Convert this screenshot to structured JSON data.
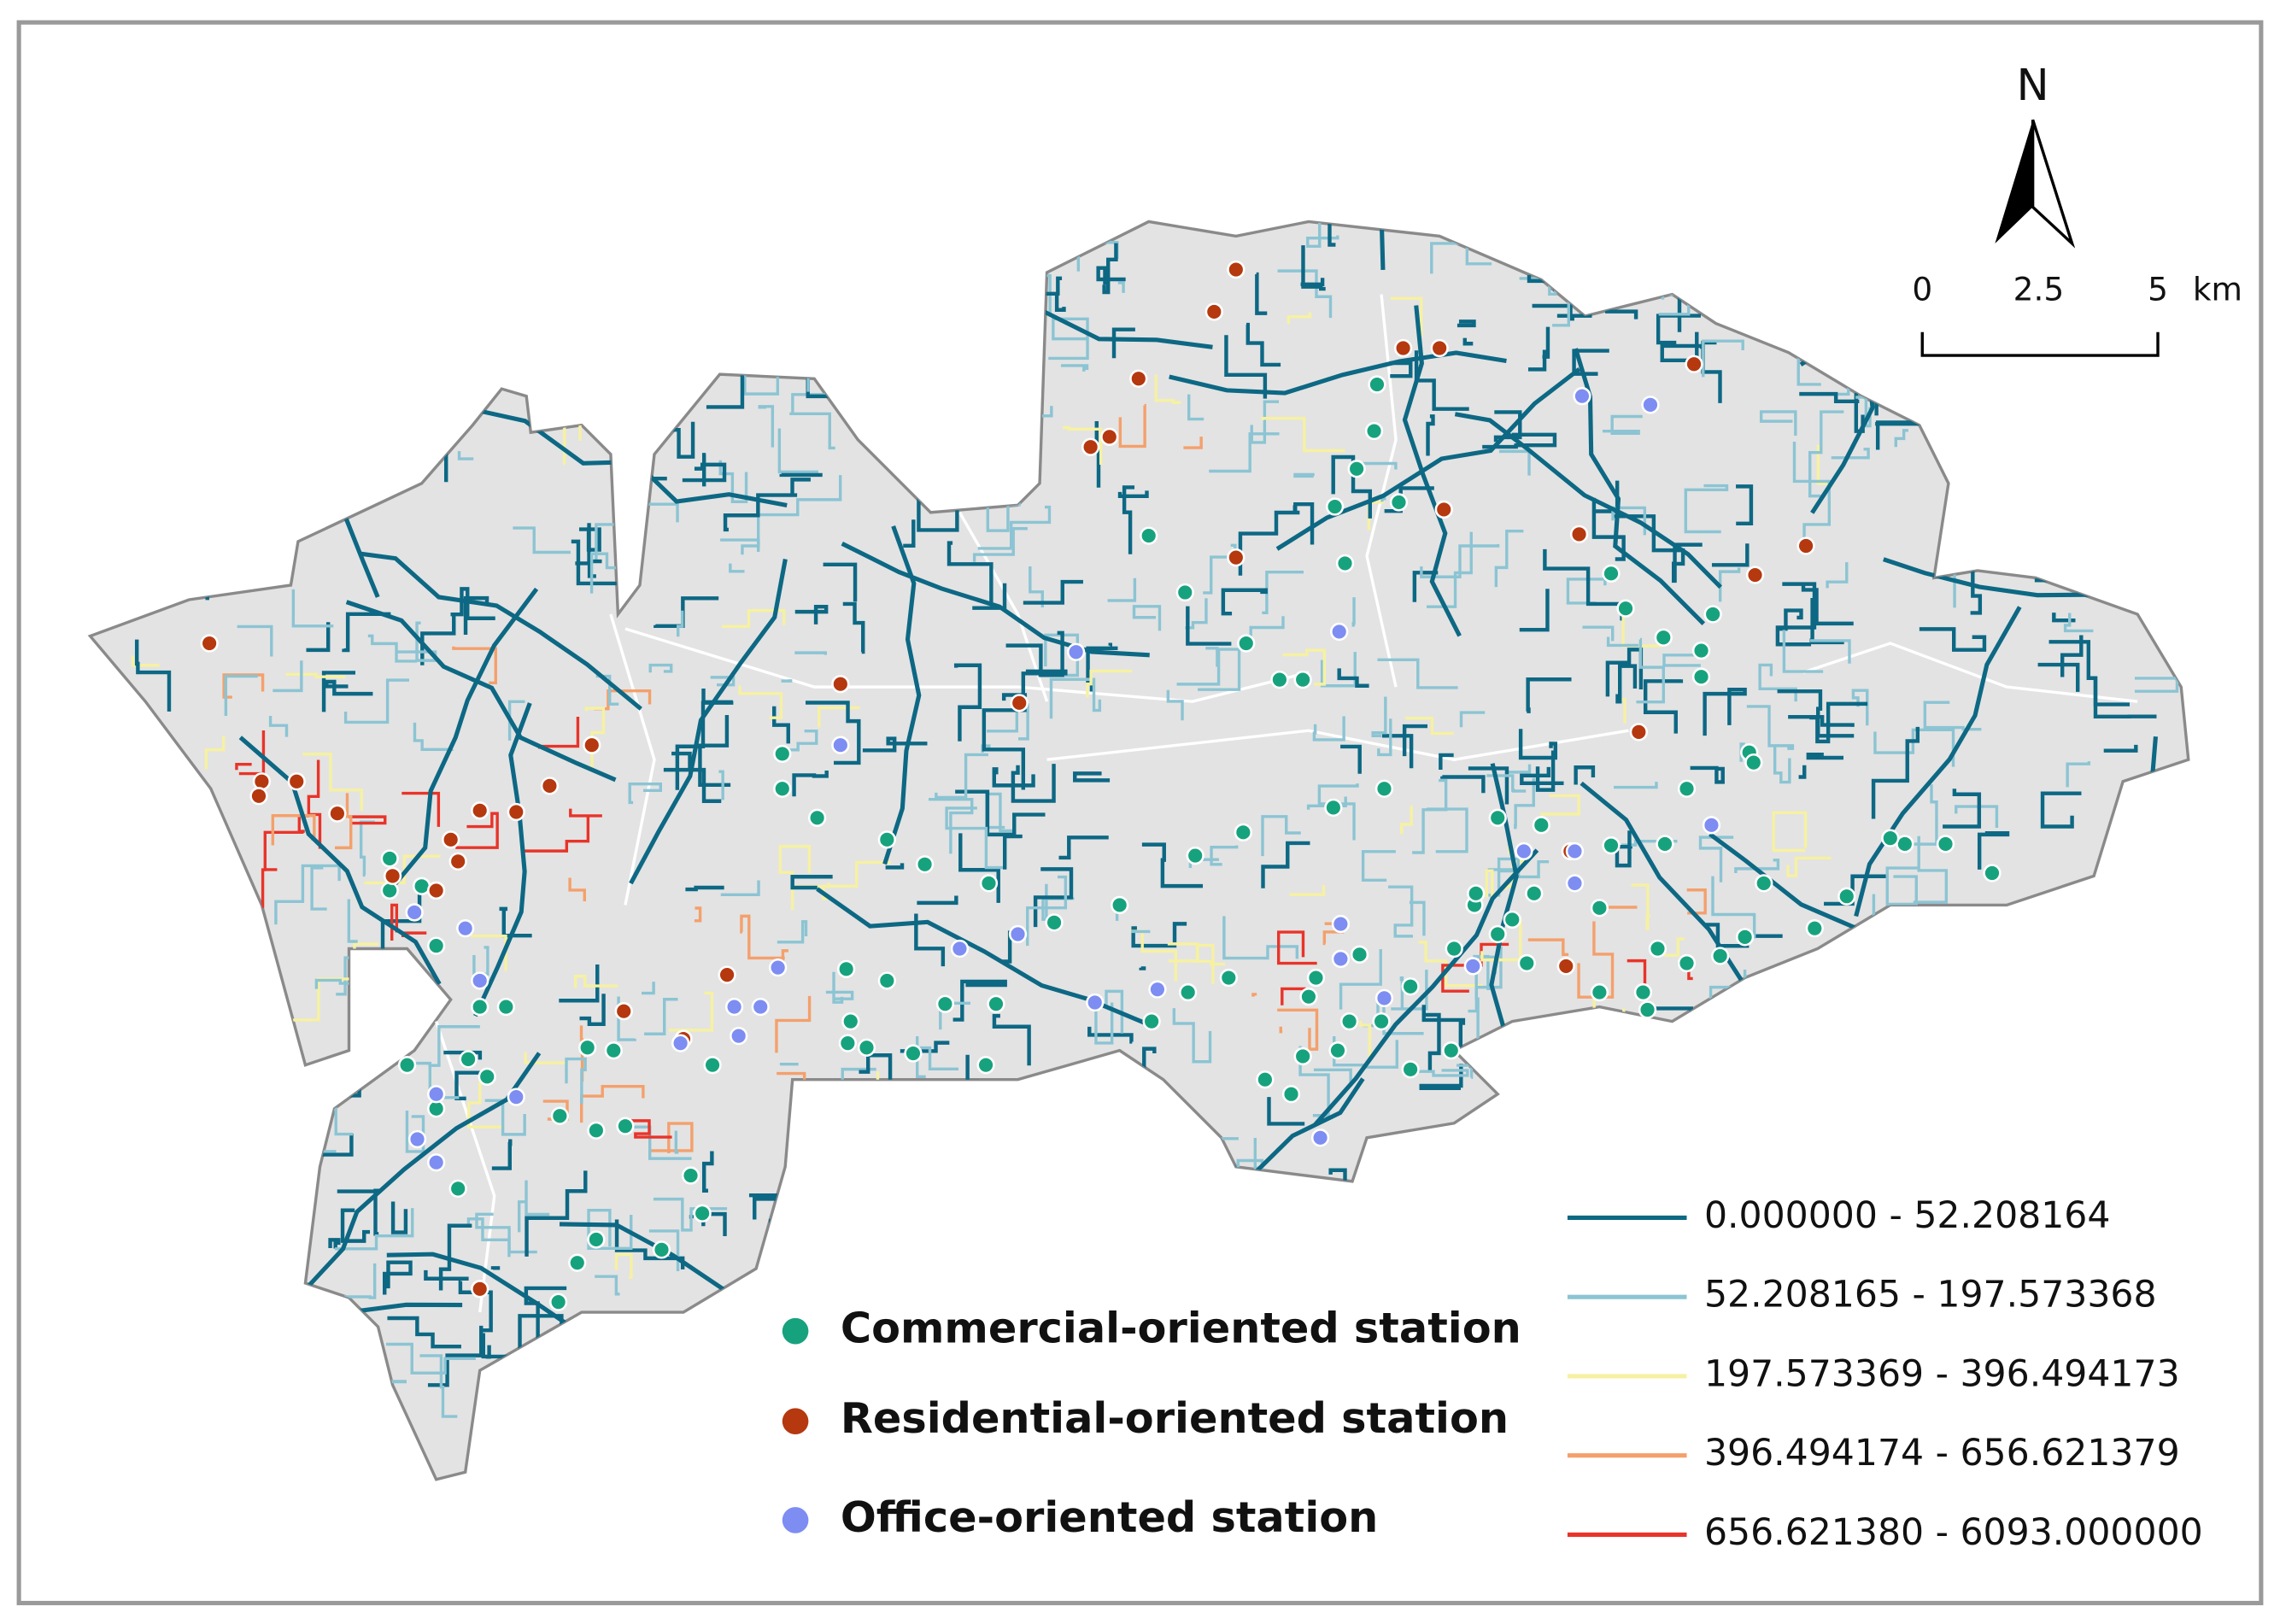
{
  "north_arrow": {
    "label": "N"
  },
  "scale_bar": {
    "ticks": [
      "0",
      "2.5",
      "5"
    ],
    "unit": "km"
  },
  "station_legend": [
    {
      "label": "Commercial-oriented station",
      "color": "#17a27e"
    },
    {
      "label": "Residential-oriented station",
      "color": "#b5380f"
    },
    {
      "label": "Office-oriented station",
      "color": "#7d8df2"
    }
  ],
  "road_legend": [
    {
      "label": "0.000000 - 52.208164",
      "color": "#0d6884"
    },
    {
      "label": "52.208165 - 197.573368",
      "color": "#8cc4d3"
    },
    {
      "label": "197.573369 - 396.494173",
      "color": "#f6f1a2"
    },
    {
      "label": "396.494174 - 656.621379",
      "color": "#f4a06c"
    },
    {
      "label": "656.621380 - 6093.000000",
      "color": "#e8342a"
    }
  ]
}
